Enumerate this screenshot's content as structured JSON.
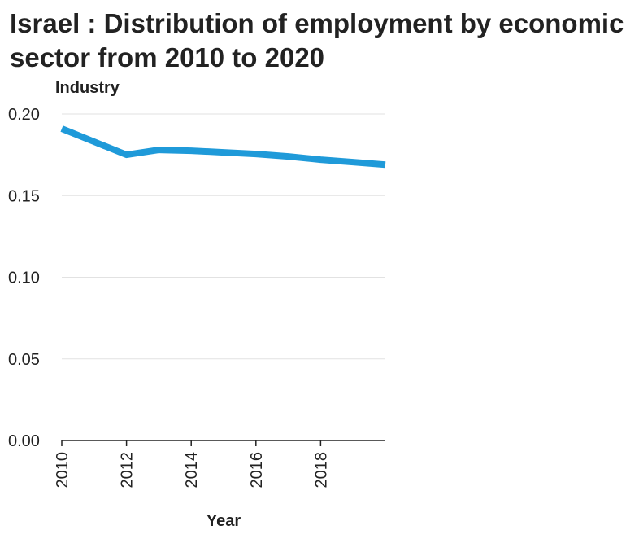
{
  "chart_data": {
    "type": "line",
    "title": "Israel : Distribution of employment by economic sector from 2010 to 2020",
    "xlabel": "Year",
    "ylabel": "Industry",
    "xlim": [
      2010,
      2020
    ],
    "ylim": [
      0,
      0.2
    ],
    "x_ticks": [
      "2010",
      "2012",
      "2014",
      "2016",
      "2018"
    ],
    "y_ticks": [
      "0.00",
      "0.05",
      "0.10",
      "0.15",
      "0.20"
    ],
    "grid": "horizontal",
    "legend": "none",
    "series": [
      {
        "color": "#1f9ad9",
        "x": [
          2010,
          2011,
          2012,
          2013,
          2014,
          2015,
          2016,
          2017,
          2018,
          2019,
          2020
        ],
        "values": [
          0.191,
          0.183,
          0.175,
          0.178,
          0.1775,
          0.1765,
          0.1755,
          0.174,
          0.172,
          0.1705,
          0.169
        ]
      }
    ]
  }
}
